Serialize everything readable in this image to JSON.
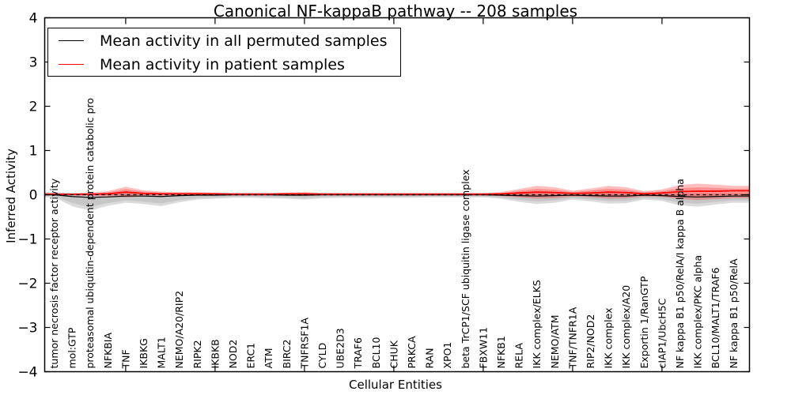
{
  "chart_data": {
    "type": "line",
    "title": "Canonical NF-kappaB pathway -- 208 samples",
    "xlabel": "Cellular Entities",
    "ylabel": "Inferred Activity",
    "ylim": [
      -4,
      4
    ],
    "yticks": [
      -4,
      -3,
      -2,
      -1,
      0,
      1,
      2,
      3,
      4
    ],
    "xticks_at": [
      4,
      9,
      14,
      19,
      24,
      29,
      34
    ],
    "grid": false,
    "legend": {
      "position": "upper-left",
      "items": [
        {
          "label": "Mean activity in all permuted samples",
          "color": "#000000"
        },
        {
          "label": "Mean activity in patient samples",
          "color": "#ff0000"
        }
      ]
    },
    "zero_reference_line": {
      "y": 0,
      "style": "dashed",
      "color": "#000000"
    },
    "categories": [
      "tumor necrosis factor receptor activity",
      "mol:GTP",
      "proteasomal ubiquitin-dependent protein catabolic pro",
      "NFKBIA",
      "TNF",
      "IKBKG",
      "MALT1",
      "NEMO/A20/RIP2",
      "RIPK2",
      "IKBKB",
      "NOD2",
      "ERC1",
      "ATM",
      "BIRC2",
      "TNFRSF1A",
      "CYLD",
      "UBE2D3",
      "TRAF6",
      "BCL10",
      "CHUK",
      "PRKCA",
      "RAN",
      "XPO1",
      "beta TrCP1/SCF ubiquitin ligase complex",
      "FBXW11",
      "NFKB1",
      "RELA",
      "IKK complex/ELKS",
      "NEMO/ATM",
      "TNF/TNFR1A",
      "RIP2/NOD2",
      "IKK complex",
      "IKK complex/A20",
      "Exportin 1/RanGTP",
      "cIAP1/UbcH5C",
      "NF kappa B1 p50/RelA/I kappa B alpha",
      "IKK complex/PKC alpha",
      "BCL10/MALT1/TRAF6",
      "NF kappa B1 p50/RelA"
    ],
    "series": [
      {
        "name": "Mean activity in all permuted samples",
        "color": "#000000",
        "values": [
          0.0,
          -0.04,
          -0.06,
          -0.05,
          -0.03,
          -0.03,
          -0.04,
          -0.02,
          -0.01,
          -0.01,
          0.0,
          0.0,
          0.0,
          -0.01,
          -0.01,
          0.0,
          0.0,
          0.0,
          0.0,
          0.0,
          0.0,
          0.0,
          0.0,
          0.0,
          0.0,
          -0.01,
          -0.02,
          -0.03,
          -0.02,
          -0.01,
          -0.02,
          -0.03,
          -0.03,
          -0.01,
          -0.02,
          -0.04,
          -0.05,
          -0.04,
          -0.03
        ]
      },
      {
        "name": "Mean activity in patient samples",
        "color": "#ff0000",
        "values": [
          0.01,
          0.01,
          0.01,
          0.02,
          0.06,
          0.03,
          0.02,
          0.02,
          0.02,
          0.02,
          0.01,
          0.01,
          0.01,
          0.02,
          0.02,
          0.01,
          0.01,
          0.01,
          0.01,
          0.01,
          0.01,
          0.01,
          0.01,
          0.01,
          0.01,
          0.02,
          0.04,
          0.06,
          0.05,
          0.03,
          0.04,
          0.06,
          0.05,
          0.02,
          0.04,
          0.07,
          0.08,
          0.08,
          0.09
        ]
      }
    ],
    "envelopes": [
      {
        "name": "permuted samples distribution",
        "color": "#b0b0b0",
        "opacity": 0.45,
        "upper": [
          0.06,
          0.04,
          0.04,
          0.03,
          0.05,
          0.03,
          0.02,
          0.04,
          0.04,
          0.04,
          0.05,
          0.05,
          0.05,
          0.04,
          0.04,
          0.05,
          0.04,
          0.04,
          0.04,
          0.04,
          0.04,
          0.04,
          0.04,
          0.04,
          0.04,
          0.04,
          0.04,
          0.04,
          0.04,
          0.04,
          0.04,
          0.04,
          0.03,
          0.04,
          0.03,
          0.03,
          0.03,
          0.03,
          0.03
        ],
        "lower": [
          -0.06,
          -0.26,
          -0.36,
          -0.25,
          -0.18,
          -0.21,
          -0.26,
          -0.17,
          -0.11,
          -0.09,
          -0.07,
          -0.07,
          -0.08,
          -0.09,
          -0.11,
          -0.08,
          -0.07,
          -0.07,
          -0.07,
          -0.07,
          -0.07,
          -0.06,
          -0.06,
          -0.06,
          -0.06,
          -0.09,
          -0.16,
          -0.21,
          -0.18,
          -0.11,
          -0.15,
          -0.2,
          -0.19,
          -0.11,
          -0.14,
          -0.24,
          -0.27,
          -0.22,
          -0.18
        ]
      },
      {
        "name": "patient samples distribution",
        "color": "#ff0000",
        "opacity": 0.25,
        "upper": [
          0.04,
          0.03,
          0.05,
          0.08,
          0.18,
          0.1,
          0.07,
          0.06,
          0.06,
          0.05,
          0.04,
          0.04,
          0.04,
          0.05,
          0.06,
          0.04,
          0.04,
          0.04,
          0.04,
          0.04,
          0.04,
          0.04,
          0.04,
          0.04,
          0.04,
          0.06,
          0.13,
          0.2,
          0.17,
          0.09,
          0.14,
          0.2,
          0.17,
          0.08,
          0.12,
          0.22,
          0.25,
          0.23,
          0.2
        ],
        "lower": [
          -0.02,
          -0.02,
          -0.03,
          -0.04,
          -0.06,
          -0.04,
          -0.03,
          -0.03,
          -0.02,
          -0.02,
          -0.02,
          -0.02,
          -0.02,
          -0.02,
          -0.03,
          -0.02,
          -0.02,
          -0.02,
          -0.02,
          -0.02,
          -0.02,
          -0.02,
          -0.02,
          -0.02,
          -0.02,
          -0.03,
          -0.06,
          -0.09,
          -0.08,
          -0.04,
          -0.06,
          -0.09,
          -0.08,
          -0.04,
          -0.05,
          -0.1,
          -0.12,
          -0.1,
          -0.08
        ]
      }
    ]
  }
}
